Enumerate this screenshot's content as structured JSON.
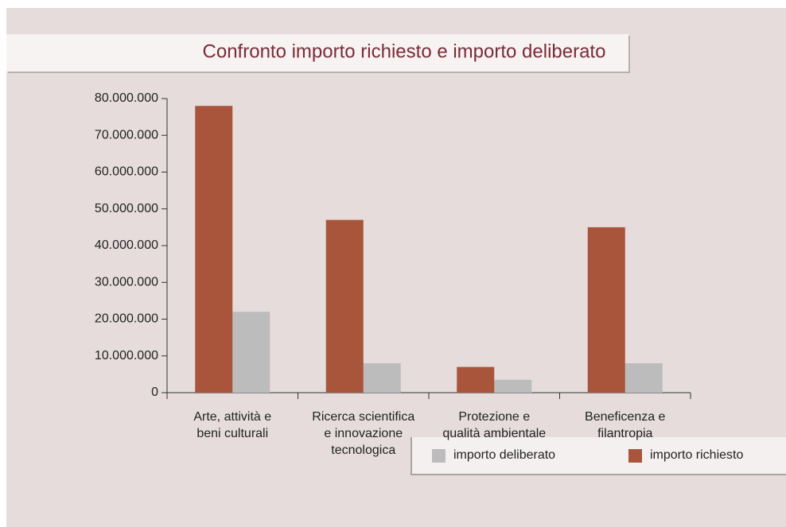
{
  "chart_data": {
    "type": "bar",
    "title": "Confronto importo richiesto e importo deliberato",
    "categories": [
      "Arte, attività e\nbeni culturali",
      "Ricerca scientifica\ne innovazione\ntecnologica",
      "Protezione e\nqualità ambientale",
      "Beneficenza e\nfilantropia"
    ],
    "series": [
      {
        "name": "importo deliberato",
        "color": "#bcbcbc",
        "values": [
          22000000,
          8000000,
          3500000,
          8000000
        ]
      },
      {
        "name": "importo richiesto",
        "color": "#a8553b",
        "values": [
          78000000,
          47000000,
          7000000,
          45000000
        ]
      }
    ],
    "ylim": [
      0,
      80000000
    ],
    "yticks": [
      0,
      {
        "value": 10000000,
        "label": "10.000.000"
      },
      {
        "value": 20000000,
        "label": "20.000.000"
      },
      {
        "value": 30000000,
        "label": "30.000.000"
      },
      {
        "value": 40000000,
        "label": "40.000.000"
      },
      {
        "value": 50000000,
        "label": "50.000.000"
      },
      {
        "value": 60000000,
        "label": "60.000.000"
      },
      {
        "value": 70000000,
        "label": "70.000.000"
      },
      {
        "value": 80000000,
        "label": "80.000.000"
      }
    ],
    "grid": false,
    "legend": "bottom-right"
  }
}
